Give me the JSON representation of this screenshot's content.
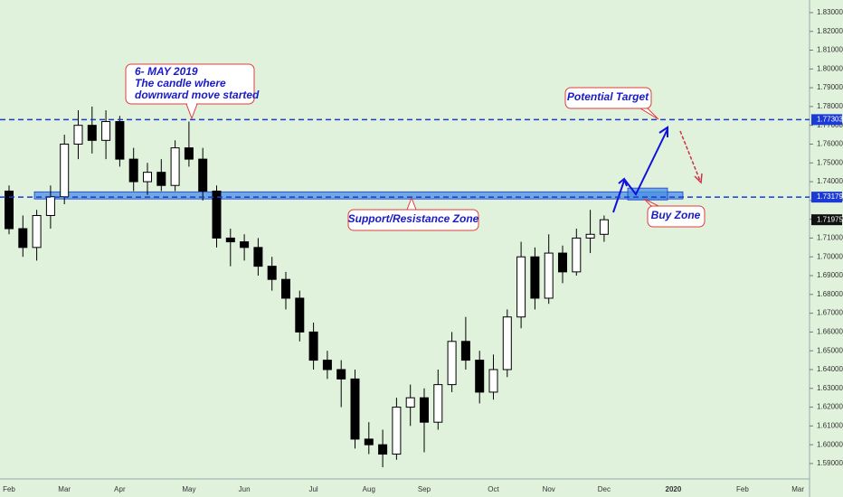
{
  "chart_data": {
    "type": "candlestick",
    "categories": [
      "Feb",
      null,
      null,
      null,
      "Mar",
      null,
      null,
      null,
      "Apr",
      null,
      null,
      null,
      null,
      "May",
      null,
      null,
      null,
      "Jun",
      null,
      null,
      null,
      null,
      "Jul",
      null,
      null,
      null,
      "Aug",
      null,
      null,
      null,
      "Sep",
      null,
      null,
      null,
      null,
      "Oct",
      null,
      null,
      null,
      "Nov",
      null,
      null,
      null,
      "Dec",
      null,
      null,
      null,
      null,
      "2020",
      null,
      null,
      null,
      null,
      "Feb",
      null,
      null,
      null,
      "Mar"
    ],
    "open": [
      1.735,
      1.715,
      1.705,
      1.722,
      1.732,
      1.76,
      1.77,
      1.762,
      1.772,
      1.752,
      1.74,
      1.745,
      1.738,
      1.758,
      1.752,
      1.735,
      1.71,
      1.708,
      1.705,
      1.695,
      1.688,
      1.678,
      1.66,
      1.645,
      1.64,
      1.635,
      1.603,
      1.6,
      1.595,
      1.62,
      1.625,
      1.612,
      1.632,
      1.655,
      1.645,
      1.628,
      1.64,
      1.668,
      1.7,
      1.678,
      1.702,
      1.692,
      1.71,
      1.712,
      null,
      null,
      null,
      null,
      null,
      null,
      null,
      null,
      null,
      null,
      null,
      null,
      null,
      null
    ],
    "high": [
      1.738,
      1.722,
      1.725,
      1.738,
      1.765,
      1.778,
      1.78,
      1.778,
      1.775,
      1.758,
      1.75,
      1.752,
      1.762,
      1.772,
      1.758,
      1.738,
      1.715,
      1.712,
      1.71,
      1.7,
      1.692,
      1.682,
      1.665,
      1.65,
      1.645,
      1.64,
      1.612,
      1.608,
      1.625,
      1.632,
      1.63,
      1.64,
      1.66,
      1.668,
      1.65,
      1.648,
      1.672,
      1.708,
      1.705,
      1.712,
      1.706,
      1.715,
      1.725,
      1.722,
      null,
      null,
      null,
      null,
      null,
      null,
      null,
      null,
      null,
      null,
      null,
      null,
      null,
      null
    ],
    "low": [
      1.712,
      1.7,
      1.698,
      1.715,
      1.728,
      1.752,
      1.755,
      1.752,
      1.748,
      1.735,
      1.733,
      1.735,
      1.735,
      1.748,
      1.73,
      1.705,
      1.695,
      1.698,
      1.69,
      1.682,
      1.672,
      1.655,
      1.64,
      1.635,
      1.62,
      1.598,
      1.595,
      1.588,
      1.592,
      1.61,
      1.596,
      1.608,
      1.628,
      1.64,
      1.622,
      1.624,
      1.636,
      1.662,
      1.672,
      1.675,
      1.686,
      1.69,
      1.702,
      1.708,
      null,
      null,
      null,
      null,
      null,
      null,
      null,
      null,
      null,
      null,
      null,
      null,
      null,
      null
    ],
    "close": [
      1.715,
      1.705,
      1.722,
      1.732,
      1.76,
      1.77,
      1.762,
      1.772,
      1.752,
      1.74,
      1.745,
      1.738,
      1.758,
      1.752,
      1.735,
      1.71,
      1.708,
      1.705,
      1.695,
      1.688,
      1.678,
      1.66,
      1.645,
      1.64,
      1.635,
      1.603,
      1.6,
      1.595,
      1.62,
      1.625,
      1.612,
      1.632,
      1.655,
      1.645,
      1.628,
      1.64,
      1.668,
      1.7,
      1.678,
      1.702,
      1.692,
      1.71,
      1.712,
      1.71975,
      null,
      null,
      null,
      null,
      null,
      null,
      null,
      null,
      null,
      null,
      null,
      null,
      null,
      null
    ],
    "up_color": "#ffffff",
    "down_color": "#000000",
    "ylim": [
      1.5818,
      1.8367
    ],
    "yticks": [
      {
        "value": 1.59,
        "label": "1.59000"
      },
      {
        "value": 1.6,
        "label": "1.60000"
      },
      {
        "value": 1.61,
        "label": "1.61000"
      },
      {
        "value": 1.62,
        "label": "1.62000"
      },
      {
        "value": 1.63,
        "label": "1.63000"
      },
      {
        "value": 1.64,
        "label": "1.64000"
      },
      {
        "value": 1.65,
        "label": "1.65000"
      },
      {
        "value": 1.66,
        "label": "1.66000"
      },
      {
        "value": 1.67,
        "label": "1.67000"
      },
      {
        "value": 1.68,
        "label": "1.68000"
      },
      {
        "value": 1.69,
        "label": "1.69000"
      },
      {
        "value": 1.7,
        "label": "1.70000"
      },
      {
        "value": 1.71,
        "label": "1.71000"
      },
      {
        "value": 1.72,
        "label": "1.72000"
      },
      {
        "value": 1.73,
        "label": "1.73000"
      },
      {
        "value": 1.74,
        "label": "1.74000"
      },
      {
        "value": 1.75,
        "label": "1.75000"
      },
      {
        "value": 1.76,
        "label": "1.76000"
      },
      {
        "value": 1.77,
        "label": "1.77000"
      },
      {
        "value": 1.78,
        "label": "1.78000"
      },
      {
        "value": 1.79,
        "label": "1.79000"
      },
      {
        "value": 1.8,
        "label": "1.80000"
      },
      {
        "value": 1.81,
        "label": "1.81000"
      },
      {
        "value": 1.82,
        "label": "1.82000"
      },
      {
        "value": 1.83,
        "label": "1.83000"
      }
    ],
    "levels": [
      1.77303,
      1.73179
    ],
    "level_color": "#1c3bd6",
    "zones": [
      [
        1.7308,
        1.7346
      ],
      [
        1.7303,
        1.7366
      ]
    ],
    "annotations": [
      {
        "lines": [
          "6- MAY 2019",
          "The candle where",
          "downward move started"
        ]
      },
      {
        "text": "Potential Target"
      },
      {
        "text": "Support/Resistance Zone"
      },
      {
        "text": "Buy Zone"
      }
    ]
  }
}
